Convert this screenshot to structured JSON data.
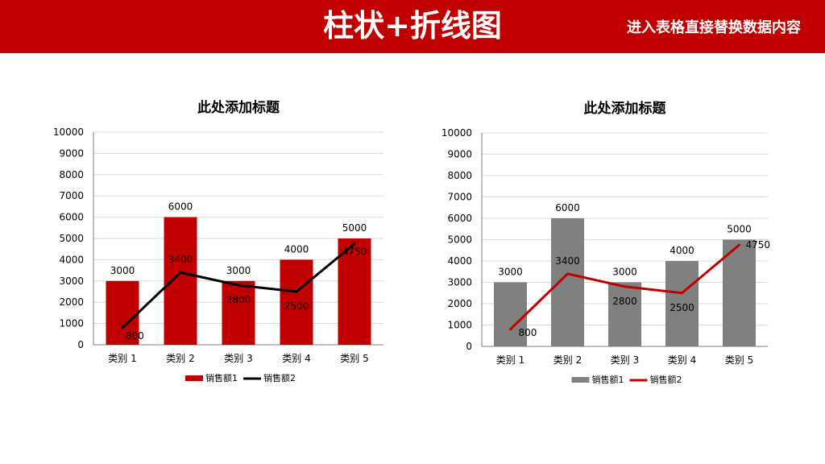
{
  "header": {
    "title": "柱状+折线图",
    "subtitle": "进入表格直接替换数据内容",
    "background_color": "#c00000"
  },
  "chart_data": [
    {
      "type": "bar",
      "title": "此处添加标题",
      "categories": [
        "类别 1",
        "类别 2",
        "类别 3",
        "类别 4",
        "类别 5"
      ],
      "ylim": [
        0,
        10000
      ],
      "yticks": [
        0,
        1000,
        2000,
        3000,
        4000,
        5000,
        6000,
        7000,
        8000,
        9000,
        10000
      ],
      "grid": true,
      "legend_position": "bottom",
      "series": [
        {
          "name": "销售额1",
          "type": "bar",
          "values": [
            3000,
            6000,
            3000,
            4000,
            5000
          ],
          "color": "#c00000"
        },
        {
          "name": "销售额2",
          "type": "line",
          "values": [
            800,
            3400,
            2800,
            2500,
            4750
          ],
          "color": "#000000"
        }
      ]
    },
    {
      "type": "bar",
      "title": "此处添加标题",
      "categories": [
        "类别 1",
        "类别 2",
        "类别 3",
        "类别 4",
        "类别 5"
      ],
      "ylim": [
        0,
        10000
      ],
      "yticks": [
        0,
        1000,
        2000,
        3000,
        4000,
        5000,
        6000,
        7000,
        8000,
        9000,
        10000
      ],
      "grid": true,
      "legend_position": "bottom",
      "series": [
        {
          "name": "销售额1",
          "type": "bar",
          "values": [
            3000,
            6000,
            3000,
            4000,
            5000
          ],
          "color": "#808080"
        },
        {
          "name": "销售额2",
          "type": "line",
          "values": [
            800,
            3400,
            2800,
            2500,
            4750
          ],
          "color": "#c00000"
        }
      ]
    }
  ]
}
